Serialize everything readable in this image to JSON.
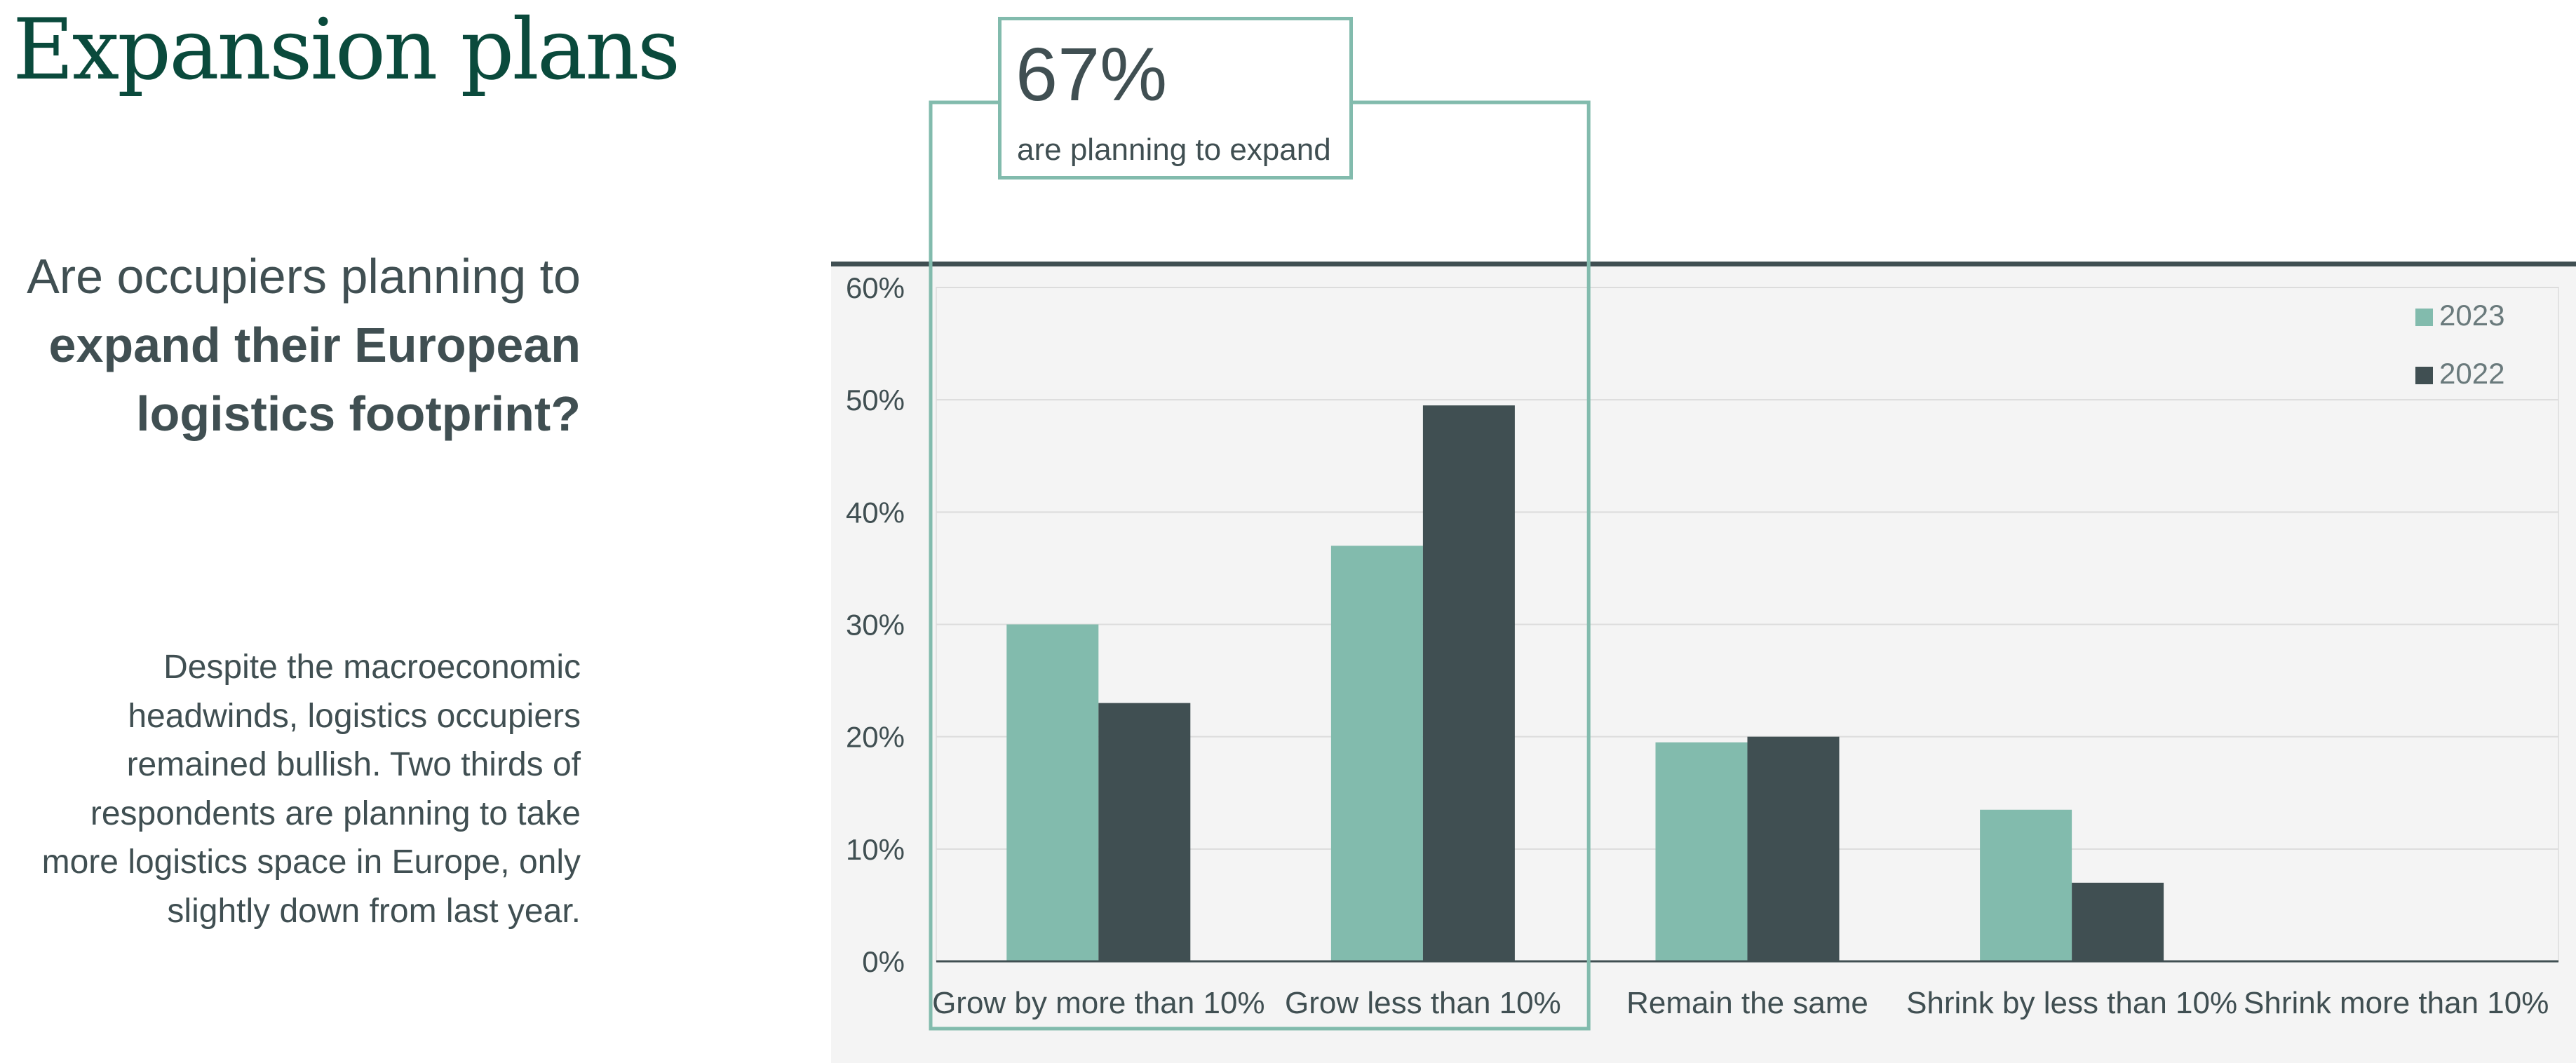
{
  "page": {
    "title": "Expansion plans",
    "question_light": "Are occupiers planning to",
    "question_bold": "expand their European logistics footprint?",
    "body": "Despite the macroeconomic headwinds, logistics occupiers remained bullish. Two thirds of respondents are planning to take more logistics space in Europe, only slightly down from last year."
  },
  "callout": {
    "value": "67%",
    "label": "are planning to expand"
  },
  "colors": {
    "title": "#0a4a3c",
    "text": "#404f52",
    "series_2023": "#82bbad",
    "series_2022": "#404f52",
    "panel": "#f4f4f4",
    "callout_border": "#82bbad"
  },
  "chart_data": {
    "type": "bar",
    "categories": [
      "Grow by more than 10%",
      "Grow less than 10%",
      "Remain the same",
      "Shrink by less than 10%",
      "Shrink more than 10%"
    ],
    "series": [
      {
        "name": "2023",
        "color": "#82bbad",
        "values": [
          30,
          37,
          19.5,
          13.5,
          0
        ]
      },
      {
        "name": "2022",
        "color": "#404f52",
        "values": [
          23,
          49.5,
          20,
          7,
          0
        ]
      }
    ],
    "ylim": [
      0,
      60
    ],
    "yticks": [
      "0%",
      "10%",
      "20%",
      "30%",
      "40%",
      "50%",
      "60%"
    ],
    "ytick_values": [
      0,
      10,
      20,
      30,
      40,
      50,
      60
    ],
    "grid": true,
    "legend": "top-right",
    "highlighted_categories": [
      "Grow by more than 10%",
      "Grow less than 10%"
    ]
  }
}
